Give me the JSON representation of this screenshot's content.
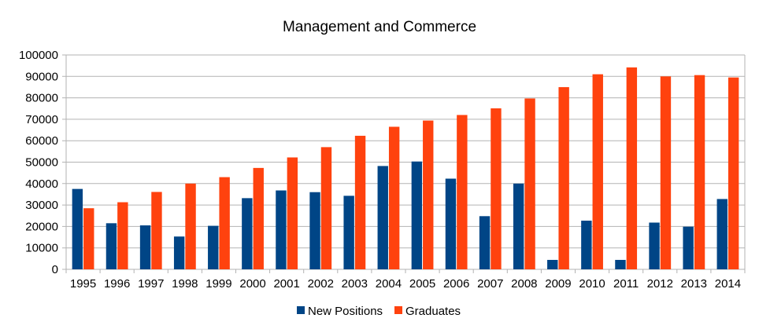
{
  "colors": {
    "new_positions": "#004586",
    "graduates": "#ff420e",
    "grid": "#b3b3b3",
    "axis": "#b3b3b3"
  },
  "chart_data": {
    "type": "bar",
    "title": "Management and Commerce",
    "xlabel": "",
    "ylabel": "",
    "ylim": [
      0,
      100000
    ],
    "yticks": [
      0,
      10000,
      20000,
      30000,
      40000,
      50000,
      60000,
      70000,
      80000,
      90000,
      100000
    ],
    "grid": true,
    "legend_position": "bottom",
    "categories": [
      "1995",
      "1996",
      "1997",
      "1998",
      "1999",
      "2000",
      "2001",
      "2002",
      "2003",
      "2004",
      "2005",
      "2006",
      "2007",
      "2008",
      "2009",
      "2010",
      "2011",
      "2012",
      "2013",
      "2014"
    ],
    "series": [
      {
        "name": "New Positions",
        "color": "#004586",
        "values": [
          37500,
          21500,
          20500,
          15300,
          20300,
          33200,
          36800,
          36000,
          34300,
          48200,
          50300,
          42300,
          24800,
          40000,
          4400,
          22700,
          4400,
          21800,
          19900,
          32800
        ]
      },
      {
        "name": "Graduates",
        "color": "#ff420e",
        "values": [
          28500,
          31300,
          36100,
          40000,
          43000,
          47300,
          52200,
          57000,
          62300,
          66500,
          69400,
          72000,
          75100,
          79700,
          85000,
          91000,
          94200,
          90000,
          90600,
          89500
        ]
      }
    ]
  }
}
